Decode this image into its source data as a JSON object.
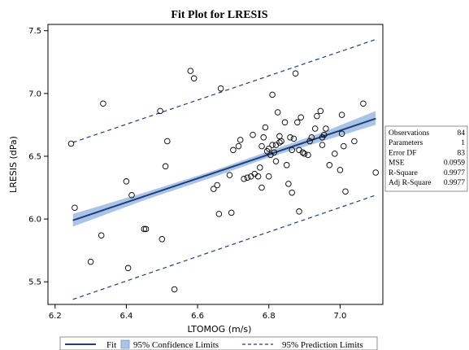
{
  "chart_data": {
    "type": "scatter",
    "title": "Fit Plot for LRESIS",
    "xlabel": "LTOMOG (m/s)",
    "ylabel": "LRESIS (dPa)",
    "xlim": [
      6.18,
      7.12
    ],
    "ylim": [
      5.32,
      7.55
    ],
    "xticks": [
      "6.2",
      "6.4",
      "6.6",
      "6.8",
      "7.0"
    ],
    "yticks": [
      "5.5",
      "6.0",
      "6.5",
      "7.0",
      "7.5"
    ],
    "grid": false,
    "colors": {
      "fit": "#1f3f7a",
      "band": "#a9c4e6",
      "prediction": "#1f3f7a",
      "points": "#000000"
    },
    "fit_line": {
      "x": [
        6.25,
        7.1
      ],
      "y": [
        5.99,
        6.8
      ]
    },
    "confidence_band": {
      "x": [
        6.25,
        6.45,
        6.65,
        6.8,
        6.95,
        7.1
      ],
      "lower": [
        5.94,
        6.15,
        6.34,
        6.49,
        6.62,
        6.75
      ],
      "upper": [
        6.04,
        6.21,
        6.39,
        6.54,
        6.69,
        6.86
      ]
    },
    "prediction_limits": {
      "x": [
        6.25,
        7.1
      ],
      "lower": [
        5.36,
        6.19
      ],
      "upper": [
        6.61,
        7.43
      ]
    },
    "points": {
      "x": [
        6.245,
        6.255,
        6.3,
        6.33,
        6.335,
        6.4,
        6.405,
        6.415,
        6.45,
        6.455,
        6.495,
        6.5,
        6.51,
        6.515,
        6.535,
        6.58,
        6.59,
        6.645,
        6.655,
        6.665,
        6.66,
        6.69,
        6.695,
        6.7,
        6.715,
        6.72,
        6.73,
        6.74,
        6.75,
        6.755,
        6.76,
        6.77,
        6.775,
        6.78,
        6.78,
        6.785,
        6.79,
        6.795,
        6.8,
        6.8,
        6.805,
        6.81,
        6.81,
        6.815,
        6.82,
        6.82,
        6.825,
        6.83,
        6.83,
        6.835,
        6.845,
        6.85,
        6.855,
        6.86,
        6.865,
        6.865,
        6.87,
        6.875,
        6.88,
        6.885,
        6.885,
        6.89,
        6.895,
        6.9,
        6.91,
        6.915,
        6.92,
        6.93,
        6.935,
        6.945,
        6.95,
        6.95,
        6.955,
        6.96,
        6.97,
        6.985,
        7.0,
        7.005,
        7.005,
        7.01,
        7.015,
        7.04,
        7.065,
        7.1
      ],
      "y": [
        6.6,
        6.09,
        5.66,
        5.87,
        6.92,
        6.3,
        5.61,
        6.19,
        5.92,
        5.92,
        6.86,
        5.84,
        6.42,
        6.62,
        5.44,
        7.18,
        7.12,
        6.24,
        6.27,
        7.04,
        6.04,
        6.35,
        6.05,
        6.55,
        6.58,
        6.63,
        6.32,
        6.33,
        6.34,
        6.67,
        6.36,
        6.34,
        6.41,
        6.25,
        6.58,
        6.65,
        6.73,
        6.54,
        6.56,
        6.34,
        6.51,
        6.99,
        6.59,
        6.53,
        6.46,
        6.59,
        6.85,
        6.66,
        6.61,
        6.62,
        6.77,
        6.43,
        6.28,
        6.65,
        6.55,
        6.21,
        6.64,
        7.16,
        6.77,
        6.55,
        6.06,
        6.81,
        6.53,
        6.52,
        6.51,
        6.62,
        6.65,
        6.72,
        6.82,
        6.86,
        6.59,
        6.65,
        6.67,
        6.72,
        6.43,
        6.52,
        6.39,
        6.83,
        6.68,
        6.58,
        6.22,
        6.62,
        6.92,
        6.37
      ]
    },
    "stats": [
      {
        "label": "Observations",
        "value": "84"
      },
      {
        "label": "Parameters",
        "value": "1"
      },
      {
        "label": "Error DF",
        "value": "83"
      },
      {
        "label": "MSE",
        "value": "0.0959"
      },
      {
        "label": "R-Square",
        "value": "0.9977"
      },
      {
        "label": "Adj R-Square",
        "value": "0.9977"
      }
    ],
    "legend": {
      "placement": "bottom",
      "entries": [
        {
          "label": "Fit",
          "style": "solid-line"
        },
        {
          "label": "95% Confidence Limits",
          "style": "band"
        },
        {
          "label": "95% Prediction Limits",
          "style": "dashed-line"
        }
      ]
    }
  }
}
